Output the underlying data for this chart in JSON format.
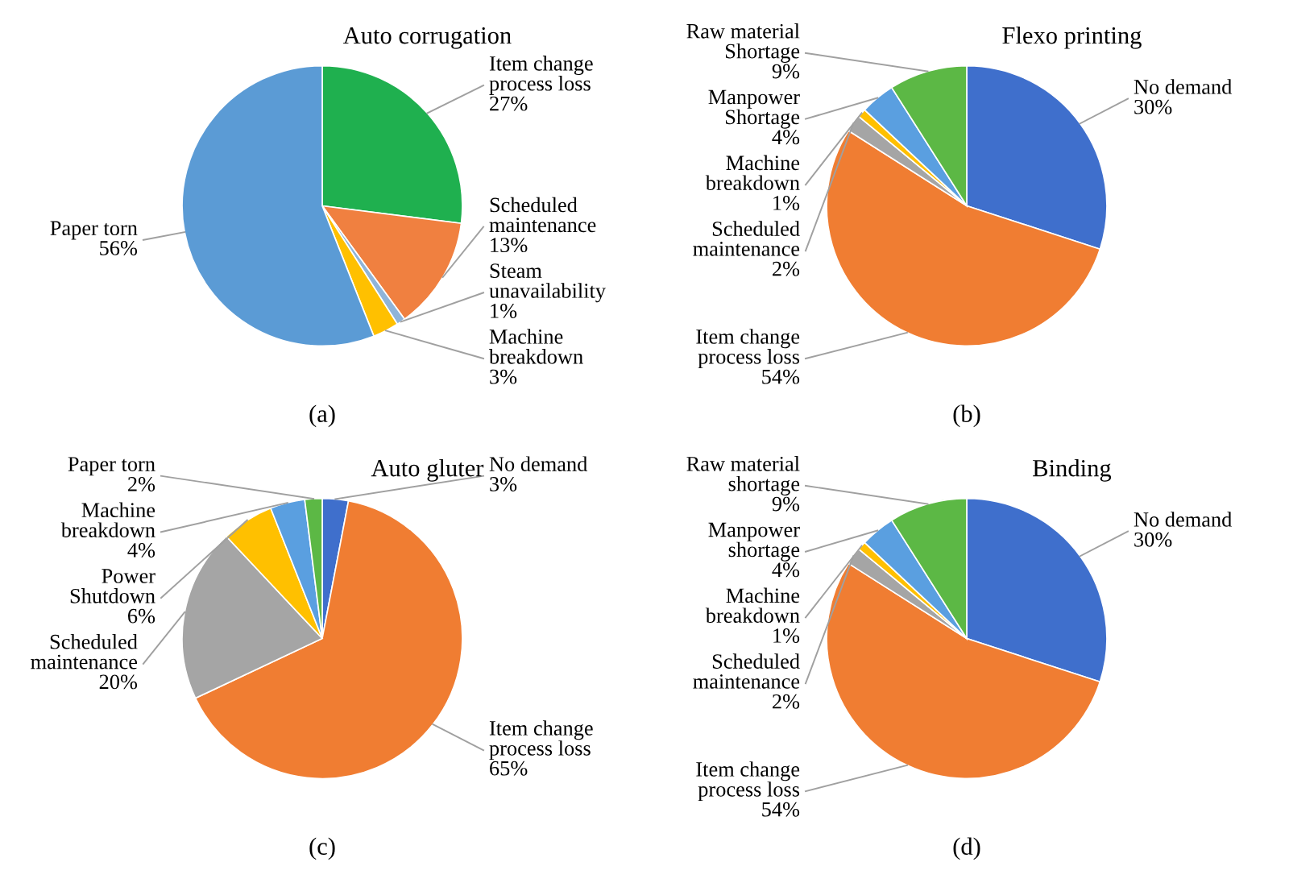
{
  "chart_data": [
    {
      "type": "pie",
      "title": "Auto corrugation",
      "annotations": [
        "(a)"
      ],
      "categories": [
        "Item change process loss",
        "Scheduled maintenance",
        "Steam unavailability",
        "Machine breakdown",
        "Paper torn"
      ],
      "values": [
        27,
        13,
        1,
        3,
        56
      ],
      "colors": [
        "#1fb04f",
        "#f08040",
        "#8fb4d9",
        "#ffc000",
        "#5b9bd5"
      ],
      "value_labels": [
        "27%",
        "13%",
        "1%",
        "3%",
        "56%"
      ]
    },
    {
      "type": "pie",
      "title": "Flexo printing",
      "annotations": [
        "(b)"
      ],
      "categories": [
        "No demand",
        "Item change process loss",
        "Scheduled maintenance",
        "Machine breakdown",
        "Manpower Shortage",
        "Raw material Shortage"
      ],
      "values": [
        30,
        54,
        2,
        1,
        4,
        9
      ],
      "colors": [
        "#3f6fcc",
        "#f07d32",
        "#a5a5a5",
        "#ffc000",
        "#5a9fe0",
        "#5cb845"
      ],
      "value_labels": [
        "30%",
        "54%",
        "2%",
        "1%",
        "4%",
        "9%"
      ]
    },
    {
      "type": "pie",
      "title": "Auto gluter",
      "annotations": [
        "(c)"
      ],
      "categories": [
        "No demand",
        "Item change process loss",
        "Scheduled maintenance",
        "Power Shutdown",
        "Machine breakdown",
        "Paper torn"
      ],
      "values": [
        3,
        65,
        20,
        6,
        4,
        2
      ],
      "colors": [
        "#3f6fcc",
        "#f07d32",
        "#a5a5a5",
        "#ffc000",
        "#5a9fe0",
        "#5cb845"
      ],
      "value_labels": [
        "3%",
        "65%",
        "20%",
        "6%",
        "4%",
        "2%"
      ]
    },
    {
      "type": "pie",
      "title": "Binding",
      "annotations": [
        "(d)"
      ],
      "categories": [
        "No demand",
        "Item change process loss",
        "Scheduled maintenance",
        "Machine breakdown",
        "Manpower shortage",
        "Raw material shortage"
      ],
      "values": [
        30,
        54,
        2,
        1,
        4,
        9
      ],
      "colors": [
        "#3f6fcc",
        "#f07d32",
        "#a5a5a5",
        "#ffc000",
        "#5a9fe0",
        "#5cb845"
      ],
      "value_labels": [
        "30%",
        "54%",
        "2%",
        "1%",
        "4%",
        "9%"
      ]
    }
  ]
}
